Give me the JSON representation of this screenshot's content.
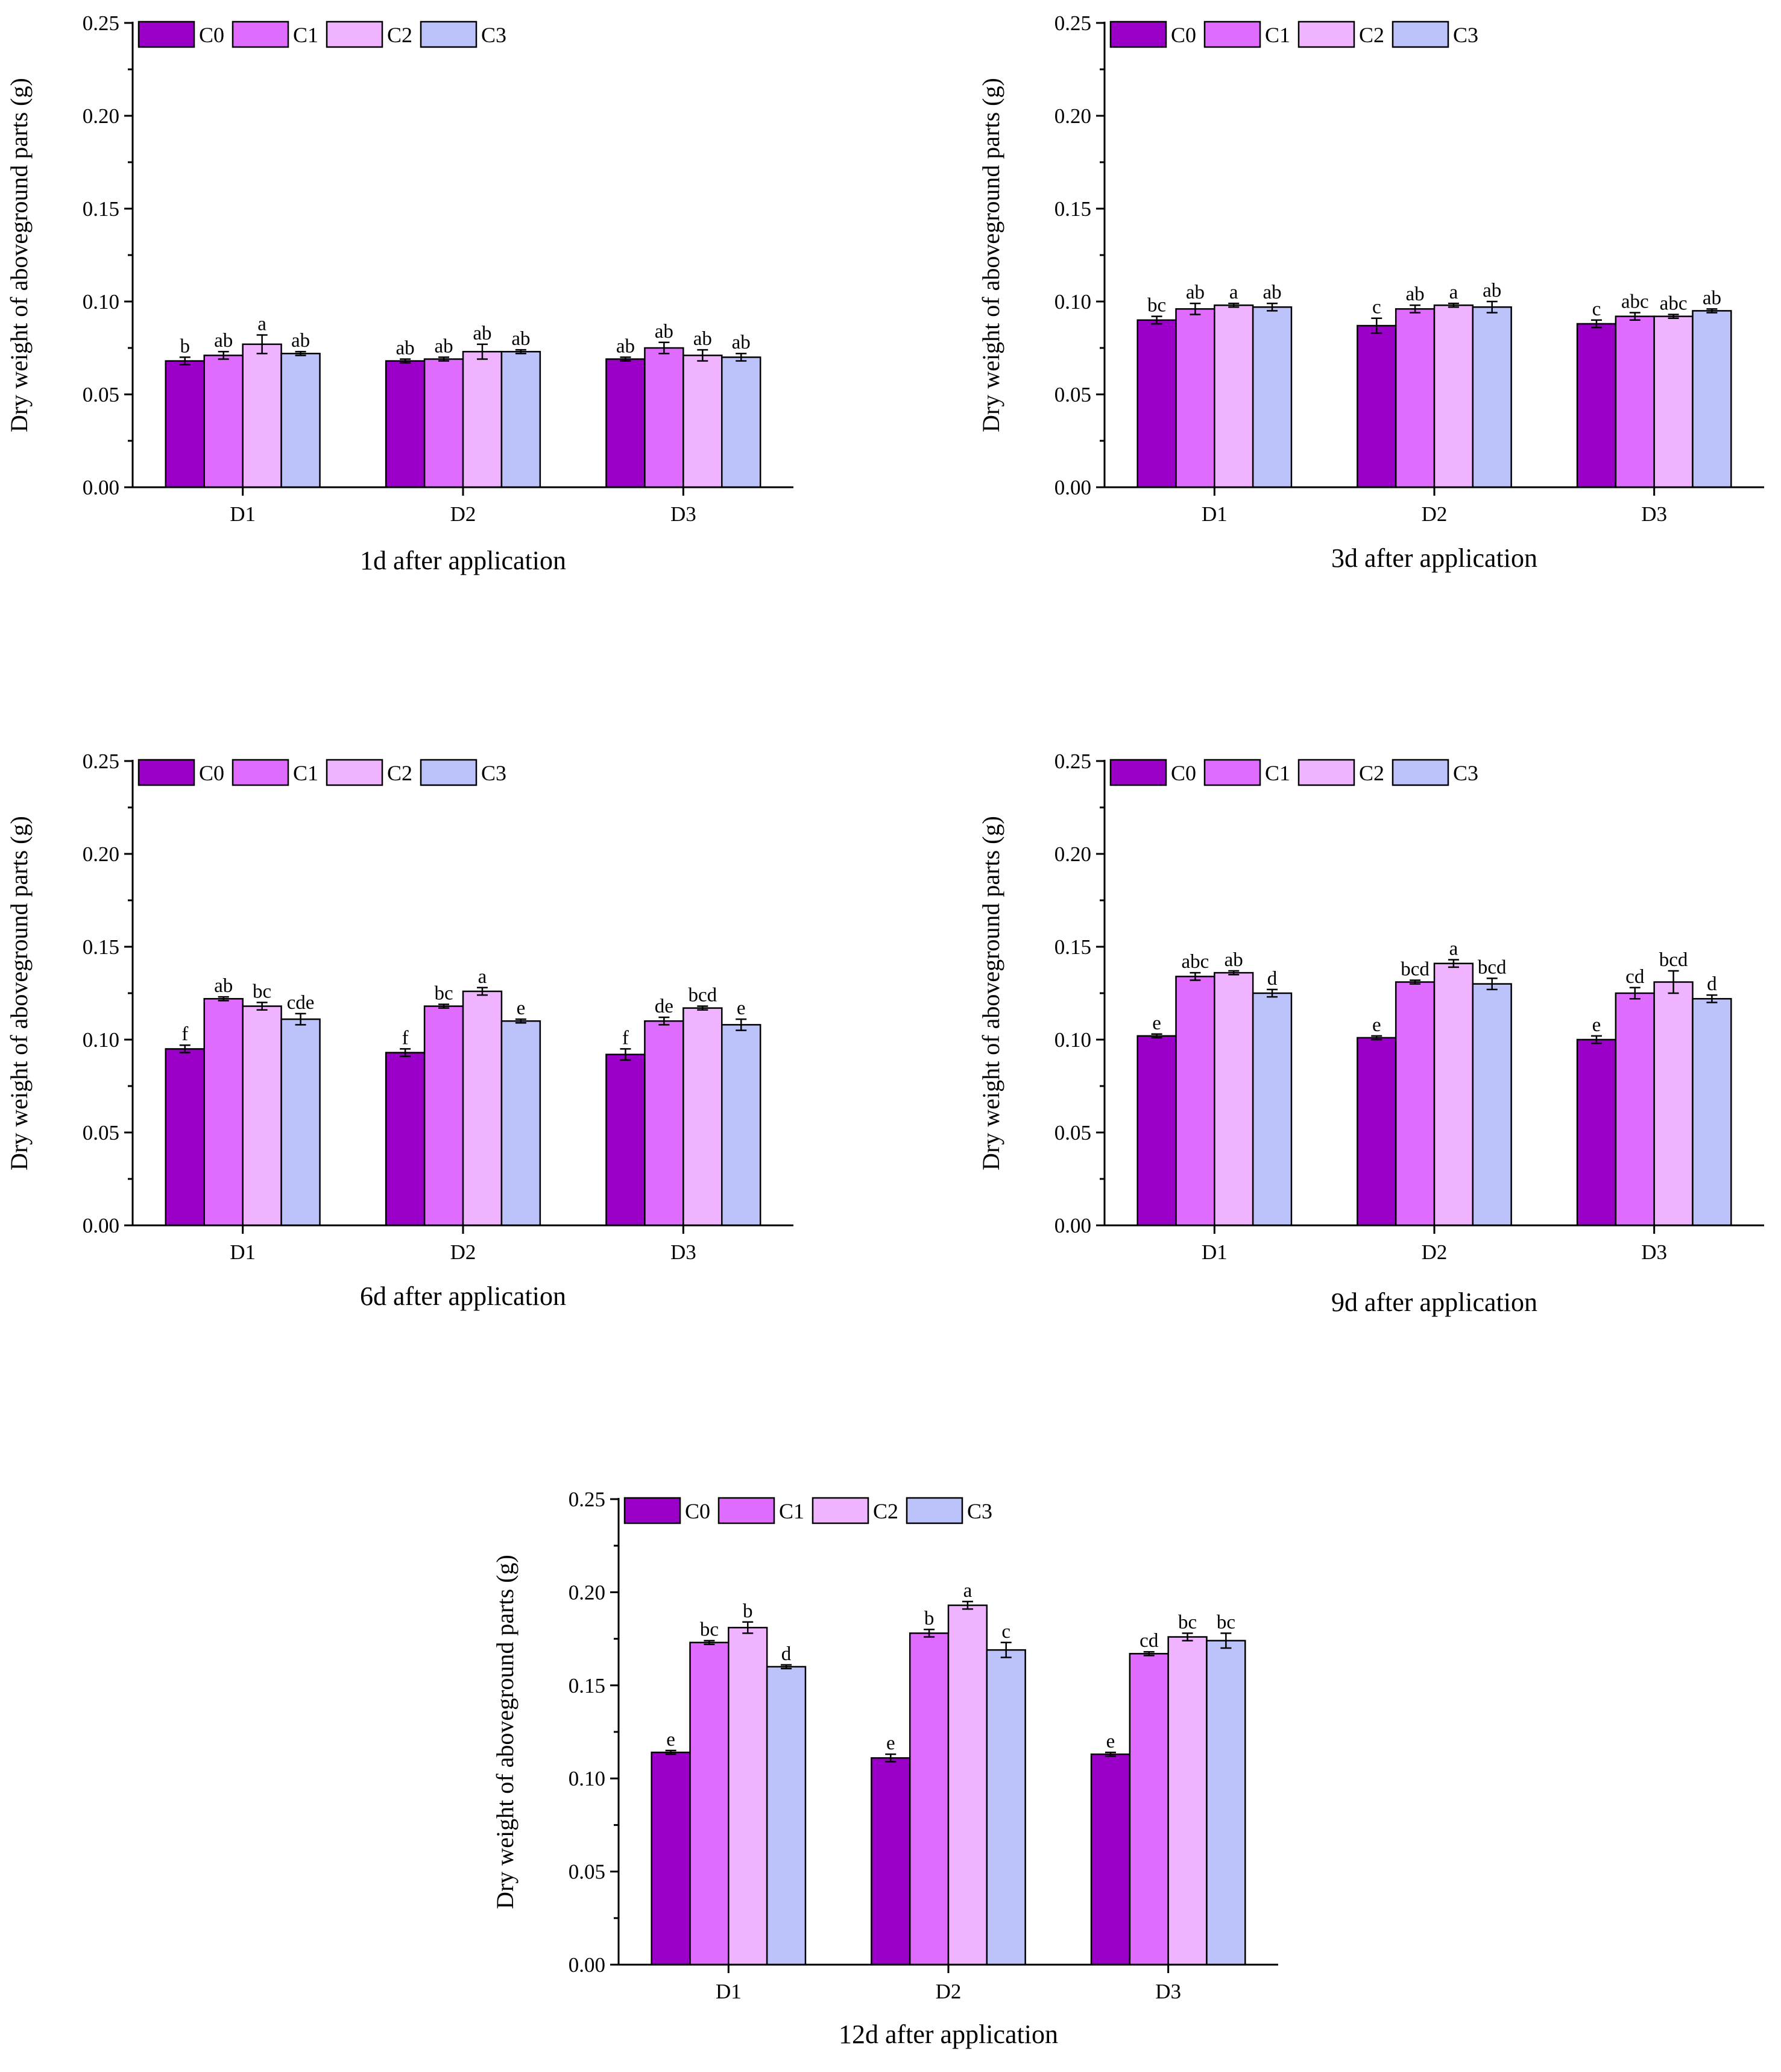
{
  "figure": {
    "series_names": [
      "C0",
      "C1",
      "C2",
      "C3"
    ],
    "colors": {
      "C0": "#9b00c8",
      "C1": "#df6bff",
      "C2": "#f0b3ff",
      "C3": "#bcc3fb"
    }
  },
  "chart_data": [
    {
      "type": "bar",
      "title": "1d after application",
      "ylabel": "Dry weight of aboveground parts (g)",
      "xlabel": "",
      "categories": [
        "D1",
        "D2",
        "D3"
      ],
      "ylim": [
        0,
        0.25
      ],
      "yticks": [
        "0.00",
        "0.05",
        "0.10",
        "0.15",
        "0.20",
        "0.25"
      ],
      "legend": "top-left",
      "series": [
        {
          "name": "C0",
          "values": [
            0.068,
            0.068,
            0.069
          ],
          "errors": [
            0.002,
            0.001,
            0.001
          ],
          "letters": [
            "b",
            "ab",
            "ab"
          ]
        },
        {
          "name": "C1",
          "values": [
            0.071,
            0.069,
            0.075
          ],
          "errors": [
            0.002,
            0.001,
            0.003
          ],
          "letters": [
            "ab",
            "ab",
            "ab"
          ]
        },
        {
          "name": "C2",
          "values": [
            0.077,
            0.073,
            0.071
          ],
          "errors": [
            0.005,
            0.004,
            0.003
          ],
          "letters": [
            "a",
            "ab",
            "ab"
          ]
        },
        {
          "name": "C3",
          "values": [
            0.072,
            0.073,
            0.07
          ],
          "errors": [
            0.001,
            0.001,
            0.002
          ],
          "letters": [
            "ab",
            "ab",
            "ab"
          ]
        }
      ]
    },
    {
      "type": "bar",
      "title": "3d after application",
      "ylabel": "Dry weight of aboveground parts (g)",
      "xlabel": "",
      "categories": [
        "D1",
        "D2",
        "D3"
      ],
      "ylim": [
        0,
        0.25
      ],
      "yticks": [
        "0.00",
        "0.05",
        "0.10",
        "0.15",
        "0.20",
        "0.25"
      ],
      "legend": "top-left",
      "series": [
        {
          "name": "C0",
          "values": [
            0.09,
            0.087,
            0.088
          ],
          "errors": [
            0.002,
            0.004,
            0.002
          ],
          "letters": [
            "bc",
            "c",
            "c"
          ]
        },
        {
          "name": "C1",
          "values": [
            0.096,
            0.096,
            0.092
          ],
          "errors": [
            0.003,
            0.002,
            0.002
          ],
          "letters": [
            "ab",
            "ab",
            "abc"
          ]
        },
        {
          "name": "C2",
          "values": [
            0.098,
            0.098,
            0.092
          ],
          "errors": [
            0.001,
            0.001,
            0.001
          ],
          "letters": [
            "a",
            "a",
            "abc"
          ]
        },
        {
          "name": "C3",
          "values": [
            0.097,
            0.097,
            0.095
          ],
          "errors": [
            0.002,
            0.003,
            0.001
          ],
          "letters": [
            "ab",
            "ab",
            "ab"
          ]
        }
      ]
    },
    {
      "type": "bar",
      "title": "6d after application",
      "ylabel": "Dry weight of aboveground parts (g)",
      "xlabel": "",
      "categories": [
        "D1",
        "D2",
        "D3"
      ],
      "ylim": [
        0,
        0.25
      ],
      "yticks": [
        "0.00",
        "0.05",
        "0.10",
        "0.15",
        "0.20",
        "0.25"
      ],
      "legend": "top-left",
      "series": [
        {
          "name": "C0",
          "values": [
            0.095,
            0.093,
            0.092
          ],
          "errors": [
            0.002,
            0.002,
            0.003
          ],
          "letters": [
            "f",
            "f",
            "f"
          ]
        },
        {
          "name": "C1",
          "values": [
            0.122,
            0.118,
            0.11
          ],
          "errors": [
            0.001,
            0.001,
            0.002
          ],
          "letters": [
            "ab",
            "bc",
            "de"
          ]
        },
        {
          "name": "C2",
          "values": [
            0.118,
            0.126,
            0.117
          ],
          "errors": [
            0.002,
            0.002,
            0.001
          ],
          "letters": [
            "bc",
            "a",
            "bcd"
          ]
        },
        {
          "name": "C3",
          "values": [
            0.111,
            0.11,
            0.108
          ],
          "errors": [
            0.003,
            0.001,
            0.003
          ],
          "letters": [
            "cde",
            "e",
            "e"
          ]
        }
      ]
    },
    {
      "type": "bar",
      "title": "9d after application",
      "ylabel": "Dry weight of aboveground parts (g)",
      "xlabel": "",
      "categories": [
        "D1",
        "D2",
        "D3"
      ],
      "ylim": [
        0,
        0.25
      ],
      "yticks": [
        "0.00",
        "0.05",
        "0.10",
        "0.15",
        "0.20",
        "0.25"
      ],
      "legend": "top-left",
      "series": [
        {
          "name": "C0",
          "values": [
            0.102,
            0.101,
            0.1
          ],
          "errors": [
            0.001,
            0.001,
            0.002
          ],
          "letters": [
            "e",
            "e",
            "e"
          ]
        },
        {
          "name": "C1",
          "values": [
            0.134,
            0.131,
            0.125
          ],
          "errors": [
            0.002,
            0.001,
            0.003
          ],
          "letters": [
            "abc",
            "bcd",
            "cd"
          ]
        },
        {
          "name": "C2",
          "values": [
            0.136,
            0.141,
            0.131
          ],
          "errors": [
            0.001,
            0.002,
            0.006
          ],
          "letters": [
            "ab",
            "a",
            "bcd"
          ]
        },
        {
          "name": "C3",
          "values": [
            0.125,
            0.13,
            0.122
          ],
          "errors": [
            0.002,
            0.003,
            0.002
          ],
          "letters": [
            "d",
            "bcd",
            "d"
          ]
        }
      ]
    },
    {
      "type": "bar",
      "title": "12d after application",
      "ylabel": "Dry weight of aboveground parts (g)",
      "xlabel": "",
      "categories": [
        "D1",
        "D2",
        "D3"
      ],
      "ylim": [
        0,
        0.25
      ],
      "yticks": [
        "0.00",
        "0.05",
        "0.10",
        "0.15",
        "0.20",
        "0.25"
      ],
      "legend": "top-left",
      "series": [
        {
          "name": "C0",
          "values": [
            0.114,
            0.111,
            0.113
          ],
          "errors": [
            0.001,
            0.002,
            0.001
          ],
          "letters": [
            "e",
            "e",
            "e"
          ]
        },
        {
          "name": "C1",
          "values": [
            0.173,
            0.178,
            0.167
          ],
          "errors": [
            0.001,
            0.002,
            0.001
          ],
          "letters": [
            "bc",
            "b",
            "cd"
          ]
        },
        {
          "name": "C2",
          "values": [
            0.181,
            0.193,
            0.176
          ],
          "errors": [
            0.003,
            0.002,
            0.002
          ],
          "letters": [
            "b",
            "a",
            "bc"
          ]
        },
        {
          "name": "C3",
          "values": [
            0.16,
            0.169,
            0.174
          ],
          "errors": [
            0.001,
            0.004,
            0.004
          ],
          "letters": [
            "d",
            "c",
            "bc"
          ]
        }
      ]
    }
  ]
}
